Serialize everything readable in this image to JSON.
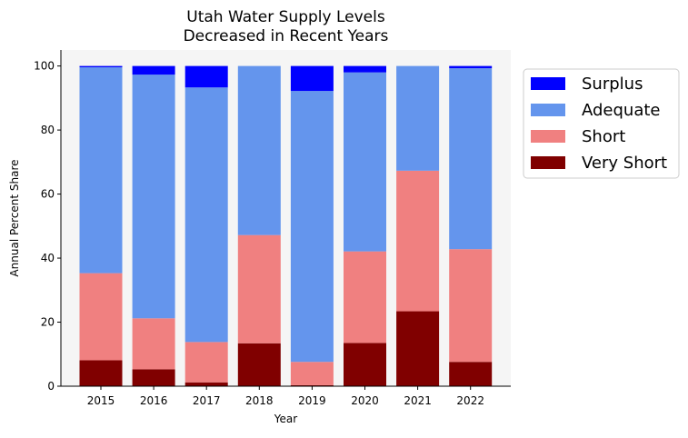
{
  "chart_data": {
    "type": "bar",
    "stacked": true,
    "title": "Utah Water Supply Levels\nDecreased in Recent Years",
    "xlabel": "Year",
    "ylabel": "Annual Percent Share",
    "ylim": [
      0,
      105
    ],
    "yticks": [
      0,
      20,
      40,
      60,
      80,
      100
    ],
    "categories": [
      "2015",
      "2016",
      "2017",
      "2018",
      "2019",
      "2020",
      "2021",
      "2022"
    ],
    "series": [
      {
        "name": "Very Short",
        "color": "#800000",
        "values": [
          8.1,
          5.3,
          1.2,
          13.4,
          0.3,
          13.5,
          23.4,
          7.6
        ]
      },
      {
        "name": "Short",
        "color": "#F08080",
        "values": [
          27.2,
          15.9,
          12.6,
          33.8,
          7.3,
          28.6,
          43.9,
          35.2
        ]
      },
      {
        "name": "Adequate",
        "color": "#6495ED",
        "values": [
          64.3,
          76.1,
          79.5,
          52.8,
          84.6,
          55.9,
          32.7,
          56.5
        ]
      },
      {
        "name": "Surplus",
        "color": "#0000FF",
        "values": [
          0.4,
          2.7,
          6.7,
          0.0,
          7.8,
          2.0,
          0.0,
          0.7
        ]
      }
    ],
    "legend": {
      "placement": "outside-right",
      "order": [
        "Surplus",
        "Adequate",
        "Short",
        "Very Short"
      ]
    },
    "plot_background": "#F5F5F5",
    "grid": false
  }
}
